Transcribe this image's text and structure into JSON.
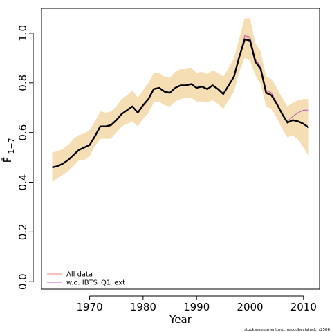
{
  "chart_data": {
    "type": "line",
    "title": "",
    "xlabel": "Year",
    "ylabel": "F̄",
    "ylabel_subscript": "1−7",
    "xlim": [
      1961,
      2013
    ],
    "ylim": [
      -0.03,
      1.1
    ],
    "x_ticks": [
      1970,
      1980,
      1990,
      2000,
      2010
    ],
    "y_ticks": [
      0.0,
      0.2,
      0.4,
      0.6,
      0.8,
      1.0
    ],
    "y_tick_labels": [
      "0.0",
      "0.2",
      "0.4",
      "0.6",
      "0.8",
      "1.0"
    ],
    "grid": false,
    "legend_position": "bottom-left",
    "years": [
      1963,
      1964,
      1965,
      1966,
      1967,
      1968,
      1969,
      1970,
      1971,
      1972,
      1973,
      1974,
      1975,
      1976,
      1977,
      1978,
      1979,
      1980,
      1981,
      1982,
      1983,
      1984,
      1985,
      1986,
      1987,
      1988,
      1989,
      1990,
      1991,
      1992,
      1993,
      1994,
      1995,
      1996,
      1997,
      1998,
      1999,
      2000,
      2001,
      2002,
      2003,
      2004,
      2005,
      2006,
      2007,
      2008,
      2009,
      2010,
      2011
    ],
    "confidence_band": {
      "color": "#f5deb3",
      "upper": [
        0.52,
        0.525,
        0.535,
        0.55,
        0.575,
        0.59,
        0.595,
        0.61,
        0.645,
        0.685,
        0.68,
        0.685,
        0.705,
        0.735,
        0.75,
        0.77,
        0.74,
        0.77,
        0.8,
        0.84,
        0.84,
        0.825,
        0.82,
        0.845,
        0.855,
        0.855,
        0.86,
        0.84,
        0.845,
        0.835,
        0.85,
        0.84,
        0.825,
        0.86,
        0.9,
        0.98,
        1.06,
        1.06,
        0.96,
        0.925,
        0.825,
        0.815,
        0.78,
        0.74,
        0.705,
        0.72,
        0.73,
        0.735,
        0.735
      ],
      "lower": [
        0.405,
        0.415,
        0.43,
        0.445,
        0.465,
        0.49,
        0.49,
        0.505,
        0.545,
        0.575,
        0.575,
        0.575,
        0.6,
        0.625,
        0.635,
        0.645,
        0.625,
        0.655,
        0.68,
        0.72,
        0.725,
        0.71,
        0.705,
        0.725,
        0.735,
        0.74,
        0.74,
        0.725,
        0.725,
        0.72,
        0.73,
        0.715,
        0.695,
        0.73,
        0.765,
        0.845,
        0.9,
        0.89,
        0.83,
        0.795,
        0.705,
        0.695,
        0.66,
        0.615,
        0.58,
        0.59,
        0.57,
        0.54,
        0.505
      ]
    },
    "series": [
      {
        "name": "All data",
        "color": "#f08080",
        "values": [
          0.46,
          0.465,
          0.475,
          0.49,
          0.51,
          0.53,
          0.54,
          0.55,
          0.585,
          0.625,
          0.625,
          0.63,
          0.65,
          0.675,
          0.69,
          0.705,
          0.68,
          0.71,
          0.735,
          0.775,
          0.78,
          0.765,
          0.76,
          0.78,
          0.79,
          0.79,
          0.795,
          0.78,
          0.785,
          0.775,
          0.79,
          0.775,
          0.755,
          0.79,
          0.825,
          0.905,
          0.985,
          0.98,
          0.89,
          0.86,
          0.765,
          0.755,
          0.72,
          0.675,
          0.64,
          0.65,
          0.645,
          0.635,
          0.62
        ]
      },
      {
        "name": "w.o. IBTS_Q1_ext",
        "color": "#b05ab8",
        "values": [
          0.46,
          0.465,
          0.475,
          0.49,
          0.51,
          0.53,
          0.54,
          0.55,
          0.585,
          0.625,
          0.625,
          0.63,
          0.65,
          0.675,
          0.69,
          0.705,
          0.68,
          0.71,
          0.735,
          0.775,
          0.78,
          0.765,
          0.76,
          0.78,
          0.79,
          0.79,
          0.795,
          0.78,
          0.785,
          0.775,
          0.79,
          0.775,
          0.755,
          0.79,
          0.825,
          0.905,
          0.99,
          0.985,
          0.895,
          0.865,
          0.77,
          0.76,
          0.72,
          0.675,
          0.645,
          0.665,
          0.68,
          0.69,
          0.69
        ]
      },
      {
        "name": "",
        "color": "#000000",
        "values": [
          0.46,
          0.465,
          0.475,
          0.49,
          0.51,
          0.53,
          0.54,
          0.55,
          0.585,
          0.625,
          0.625,
          0.63,
          0.65,
          0.675,
          0.69,
          0.705,
          0.68,
          0.71,
          0.735,
          0.775,
          0.78,
          0.765,
          0.76,
          0.78,
          0.79,
          0.79,
          0.795,
          0.78,
          0.785,
          0.775,
          0.79,
          0.775,
          0.755,
          0.79,
          0.825,
          0.905,
          0.975,
          0.97,
          0.885,
          0.855,
          0.76,
          0.75,
          0.715,
          0.675,
          0.64,
          0.65,
          0.645,
          0.635,
          0.62
        ]
      }
    ],
    "credit": "stockassessment.org, nscodbeststock, r2506"
  }
}
